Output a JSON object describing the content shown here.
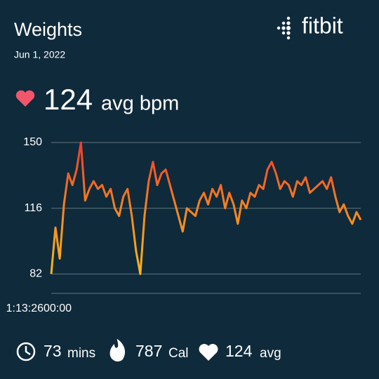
{
  "header": {
    "title": "Weights",
    "date": "Jun 1, 2022",
    "brand": "fitbit",
    "avg_value": 124,
    "avg_unit": "avg bpm"
  },
  "chart_data": {
    "type": "line",
    "series": [
      {
        "name": "Heart rate",
        "color": "#f77b1f",
        "values": [
          82,
          106,
          90,
          118,
          134,
          128,
          136,
          150,
          120,
          126,
          130,
          126,
          128,
          122,
          126,
          116,
          112,
          122,
          126,
          112,
          94,
          82,
          112,
          130,
          140,
          128,
          134,
          136,
          128,
          120,
          112,
          104,
          116,
          114,
          112,
          120,
          124,
          118,
          126,
          122,
          128,
          116,
          124,
          118,
          108,
          120,
          116,
          124,
          122,
          128,
          126,
          136,
          140,
          134,
          126,
          130,
          128,
          122,
          130,
          128,
          132,
          124,
          126,
          128,
          130,
          126,
          132,
          122,
          114,
          118,
          112,
          108,
          114,
          110
        ]
      }
    ],
    "xtick_labels": [
      "1:13:26",
      "00:00"
    ],
    "ylim": [
      72,
      150
    ],
    "yticks": [
      82,
      116,
      150
    ],
    "grid": true
  },
  "stats": [
    {
      "value": 73,
      "unit": "mins"
    },
    {
      "value": 787,
      "unit": "Cal"
    },
    {
      "value": 124,
      "unit": "avg"
    }
  ]
}
